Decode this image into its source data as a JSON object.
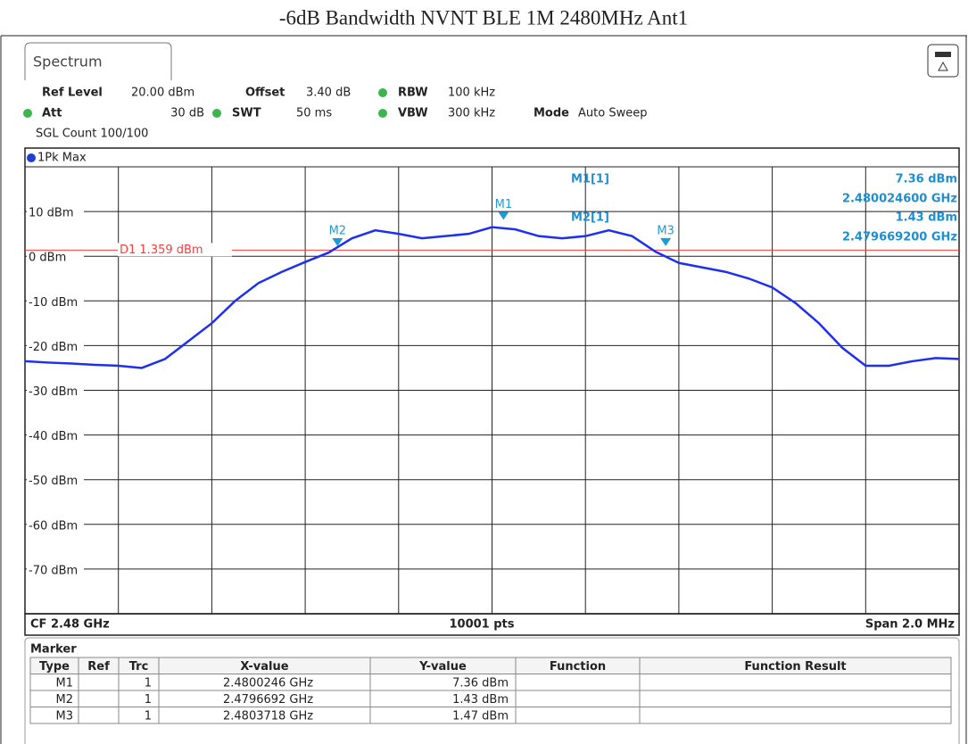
{
  "title": "-6dB Bandwidth NVNT BLE 1M 2480MHz Ant1",
  "tab": "Spectrum",
  "settings": {
    "ref_level_label": "Ref Level",
    "ref_level": "20.00 dBm",
    "offset_label": "Offset",
    "offset": "3.40 dB",
    "rbw_label": "RBW",
    "rbw": "100 kHz",
    "att_label": "Att",
    "att": "30 dB",
    "swt_label": "SWT",
    "swt": "50 ms",
    "vbw_label": "VBW",
    "vbw": "300 kHz",
    "mode_label": "Mode",
    "mode": "Auto Sweep",
    "count": "SGL Count 100/100",
    "trace": "1Pk Max"
  },
  "chart_data": {
    "type": "line",
    "color": "#1f2ff0",
    "x": [
      2.479,
      2.47905,
      2.4791,
      2.47915,
      2.4792,
      2.47925,
      2.4793,
      2.47935,
      2.4794,
      2.47945,
      2.4795,
      2.47955,
      2.4796,
      2.47965,
      2.4797,
      2.47975,
      2.4798,
      2.47985,
      2.4799,
      2.47995,
      2.48,
      2.48005,
      2.4801,
      2.48015,
      2.4802,
      2.48025,
      2.4803,
      2.48035,
      2.4804,
      2.48045,
      2.4805,
      2.48055,
      2.4806,
      2.48065,
      2.4807,
      2.48075,
      2.4808,
      2.48085,
      2.4809,
      2.48095,
      2.481
    ],
    "values": [
      -23.5,
      -23.8,
      -24,
      -24.3,
      -24.5,
      -25,
      -23,
      -19,
      -15,
      -10,
      -6,
      -3.5,
      -1.3,
      0.8,
      4,
      5.8,
      5,
      4,
      4.5,
      5,
      6.5,
      6,
      4.5,
      4,
      4.5,
      5.8,
      4.5,
      1,
      -1.5,
      -2.5,
      -3.5,
      -5,
      -7,
      -10.5,
      -15,
      -20.5,
      -24.5,
      -24.5,
      -23.5,
      -22.8,
      -23
    ],
    "xlim": [
      2.479,
      2.481
    ],
    "xticks": [
      2.4792,
      2.4794,
      2.4796,
      2.4798,
      2.48,
      2.4802,
      2.4804,
      2.4806,
      2.4808
    ],
    "ylim": [
      -80,
      20
    ],
    "yticks": [
      {
        "value": 20,
        "label": ""
      },
      {
        "value": 10,
        "label": "10 dBm"
      },
      {
        "value": 0,
        "label": "0 dBm"
      },
      {
        "value": -10,
        "label": "-10 dBm"
      },
      {
        "value": -20,
        "label": "-20 dBm"
      },
      {
        "value": -30,
        "label": "-30 dBm"
      },
      {
        "value": -40,
        "label": "-40 dBm"
      },
      {
        "value": -50,
        "label": "-50 dBm"
      },
      {
        "value": -60,
        "label": "-60 dBm"
      },
      {
        "value": -70,
        "label": "-70 dBm"
      }
    ],
    "grid": true,
    "display_line": {
      "label": "D1 1.359 dBm",
      "value": 1.359,
      "color": "#ff3b3b"
    }
  },
  "readout": [
    {
      "name": "M1[1]",
      "level": "7.36 dBm",
      "freq": "2.480024600 GHz"
    },
    {
      "name": "M2[1]",
      "level": "1.43 dBm",
      "freq": "2.479669200 GHz"
    }
  ],
  "footer": {
    "center_freq": "CF 2.48 GHz",
    "points": "10001 pts",
    "span": "Span 2.0 MHz"
  },
  "table": {
    "title": "Marker",
    "header": [
      "Type",
      "Ref",
      "Trc",
      "X-value",
      "Y-value",
      "Function",
      "Function Result"
    ],
    "rows": [
      [
        "M1",
        "",
        "1",
        "2.4800246 GHz",
        "7.36 dBm",
        "",
        ""
      ],
      [
        "M2",
        "",
        "1",
        "2.4796692 GHz",
        "1.43 dBm",
        "",
        ""
      ],
      [
        "M3",
        "",
        "1",
        "2.4803718 GHz",
        "1.47 dBm",
        "",
        ""
      ]
    ]
  }
}
